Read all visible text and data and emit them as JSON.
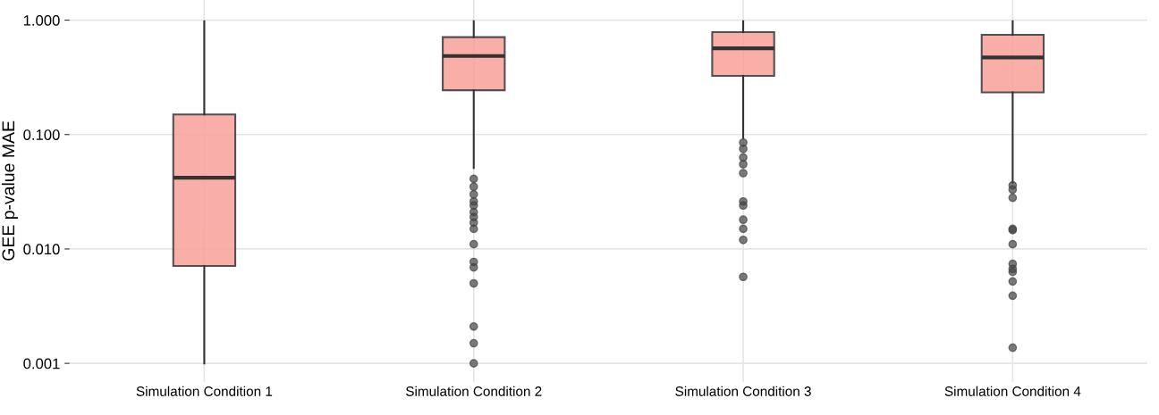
{
  "chart_data": {
    "type": "box",
    "ylabel": "GEE p-value MAE",
    "categories": [
      "Simulation Condition 1",
      "Simulation Condition 2",
      "Simulation Condition 3",
      "Simulation Condition 4"
    ],
    "color": "#f8a09a",
    "log": "y",
    "grid": true,
    "ylim": [
      0.00069,
      1.5
    ],
    "yticks": [
      {
        "value": 0.001,
        "label": "0.001"
      },
      {
        "value": 0.01,
        "label": "0.010"
      },
      {
        "value": 0.1,
        "label": "0.100"
      },
      {
        "value": 1,
        "label": "1.000"
      }
    ],
    "boxes": [
      {
        "low": 0.001,
        "q1": 0.0071,
        "median": 0.042,
        "q3": 0.15,
        "high": 0.98
      },
      {
        "low": 0.051,
        "q1": 0.244,
        "median": 0.486,
        "q3": 0.71,
        "high": 0.98,
        "outliers": [
          0.041,
          0.035,
          0.03,
          0.026,
          0.024,
          0.021,
          0.019,
          0.017,
          0.015,
          0.011,
          0.0077,
          0.0069,
          0.005,
          0.0021,
          0.0015,
          0.001
        ]
      },
      {
        "low": 0.093,
        "q1": 0.326,
        "median": 0.567,
        "q3": 0.785,
        "high": 0.98,
        "outliers": [
          0.085,
          0.075,
          0.063,
          0.055,
          0.046,
          0.026,
          0.024,
          0.018,
          0.015,
          0.012,
          0.0057
        ]
      },
      {
        "low": 0.038,
        "q1": 0.234,
        "median": 0.472,
        "q3": 0.744,
        "high": 0.98,
        "outliers": [
          0.036,
          0.033,
          0.028,
          0.015,
          0.0146,
          0.011,
          0.0074,
          0.0067,
          0.0063,
          0.0052,
          0.0039,
          0.00137
        ]
      }
    ]
  }
}
